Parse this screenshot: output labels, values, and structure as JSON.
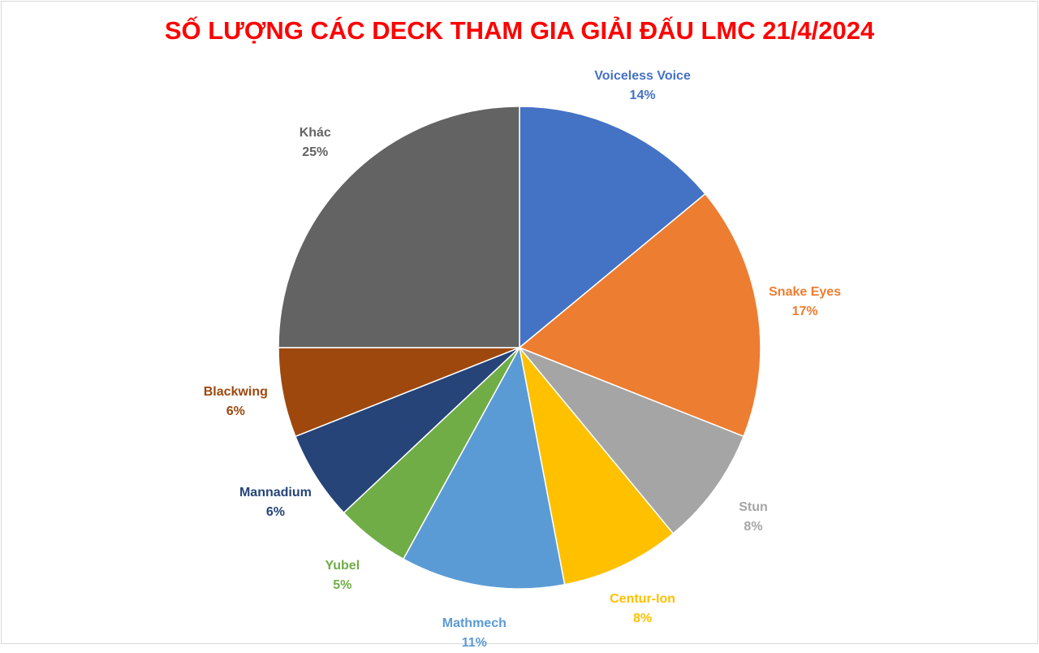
{
  "chart_data": {
    "type": "pie",
    "title": "SỐ LƯỢNG CÁC DECK THAM GIA GIẢI ĐẤU LMC 21/4/2024",
    "start": "top",
    "direction": "clockwise",
    "slices": [
      {
        "label": "Voiceless Voice",
        "value": 14,
        "display": "14%",
        "color": "#4472C4"
      },
      {
        "label": "Snake Eyes",
        "value": 17,
        "display": "17%",
        "color": "#ED7D31"
      },
      {
        "label": "Stun",
        "value": 8,
        "display": "8%",
        "color": "#A5A5A5"
      },
      {
        "label": "Centur-Ion",
        "value": 8,
        "display": "8%",
        "color": "#FFC000"
      },
      {
        "label": "Mathmech",
        "value": 11,
        "display": "11%",
        "color": "#5B9BD5"
      },
      {
        "label": "Yubel",
        "value": 5,
        "display": "5%",
        "color": "#70AD47"
      },
      {
        "label": "Mannadium",
        "value": 6,
        "display": "6%",
        "color": "#264478"
      },
      {
        "label": "Blackwing",
        "value": 6,
        "display": "6%",
        "color": "#9E480E"
      },
      {
        "label": "Khác",
        "value": 25,
        "display": "25%",
        "color": "#636363"
      }
    ]
  }
}
